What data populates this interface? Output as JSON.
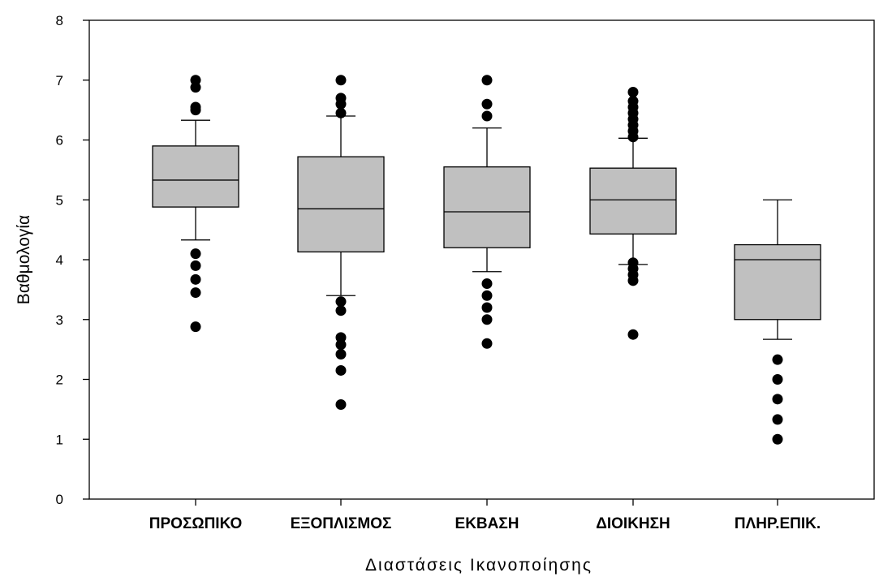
{
  "chart_data": {
    "type": "boxplot",
    "title": "",
    "xlabel": "Διαστάσεις Ικανοποίησης",
    "ylabel": "Βαθμολογία",
    "ylim": [
      0,
      8
    ],
    "yticks": [
      0,
      1,
      2,
      3,
      4,
      5,
      6,
      7,
      8
    ],
    "grid": false,
    "legend": "none",
    "box_color": "#c0c0c0",
    "outlier_color": "#000000",
    "categories": [
      "ΠΡΟΣΩΠΙΚΟ",
      "ΕΞΟΠΛΙΣΜΟΣ",
      "ΕΚΒΑΣΗ",
      "ΔΙΟΙΚΗΣΗ",
      "ΠΛΗΡ.ΕΠΙΚ."
    ],
    "boxes": [
      {
        "whisker_low": 4.33,
        "q1": 4.88,
        "median": 5.33,
        "q3": 5.9,
        "whisker_high": 6.33,
        "outliers": [
          2.88,
          3.45,
          3.67,
          3.9,
          4.1,
          6.5,
          6.55,
          6.88,
          7.0
        ]
      },
      {
        "whisker_low": 3.4,
        "q1": 4.13,
        "median": 4.85,
        "q3": 5.72,
        "whisker_high": 6.4,
        "outliers": [
          1.58,
          2.15,
          2.42,
          2.58,
          2.7,
          3.15,
          3.3,
          6.45,
          6.6,
          6.7,
          7.0
        ]
      },
      {
        "whisker_low": 3.8,
        "q1": 4.2,
        "median": 4.8,
        "q3": 5.55,
        "whisker_high": 6.2,
        "outliers": [
          2.6,
          3.0,
          3.2,
          3.4,
          3.6,
          6.4,
          6.6,
          7.0
        ]
      },
      {
        "whisker_low": 3.92,
        "q1": 4.43,
        "median": 5.0,
        "q3": 5.53,
        "whisker_high": 6.03,
        "outliers": [
          2.75,
          3.65,
          3.75,
          3.85,
          3.95,
          6.05,
          6.15,
          6.25,
          6.35,
          6.45,
          6.55,
          6.65,
          6.8
        ]
      },
      {
        "whisker_low": 2.67,
        "q1": 3.0,
        "median": 4.0,
        "q3": 4.25,
        "whisker_high": 5.0,
        "outliers": [
          1.0,
          1.33,
          1.67,
          2.0,
          2.33
        ]
      }
    ]
  }
}
